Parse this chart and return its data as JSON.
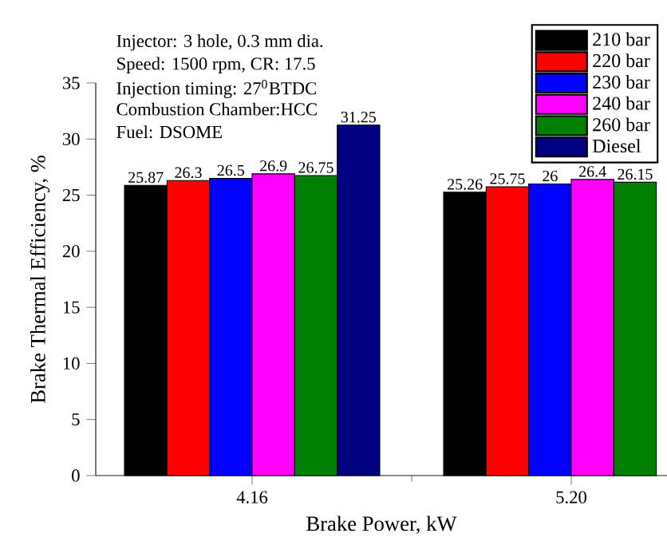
{
  "chart_data": {
    "type": "bar",
    "xlabel": "Brake Power, kW",
    "ylabel": "Brake Thermal Efficiency, %",
    "categories": [
      "4.16",
      "5.20"
    ],
    "series": [
      {
        "name": "210 bar",
        "color": "#000000",
        "values": [
          25.87,
          25.26
        ]
      },
      {
        "name": "220 bar",
        "color": "#ff0000",
        "values": [
          26.3,
          25.75
        ]
      },
      {
        "name": "230 bar",
        "color": "#0000ff",
        "values": [
          26.5,
          26
        ]
      },
      {
        "name": "240 bar",
        "color": "#ff00ff",
        "values": [
          26.9,
          26.4
        ]
      },
      {
        "name": "260 bar",
        "color": "#008000",
        "values": [
          26.75,
          26.15
        ]
      },
      {
        "name": "Diesel",
        "color": "#000080",
        "values": [
          31.25,
          null
        ]
      }
    ],
    "ylim": [
      0,
      35
    ],
    "yticks": [
      0,
      5,
      10,
      15,
      20,
      25,
      30,
      35
    ],
    "data_labels": true,
    "legend": "top right",
    "annotations": [
      "Injector: 3 hole, 0.3 mm dia.",
      "Speed: 1500 rpm, CR: 17.5",
      "Injection timing: 27$^{0}$BTDC",
      "Combustion Chamber:HCC",
      "Fuel: DSOME"
    ]
  }
}
